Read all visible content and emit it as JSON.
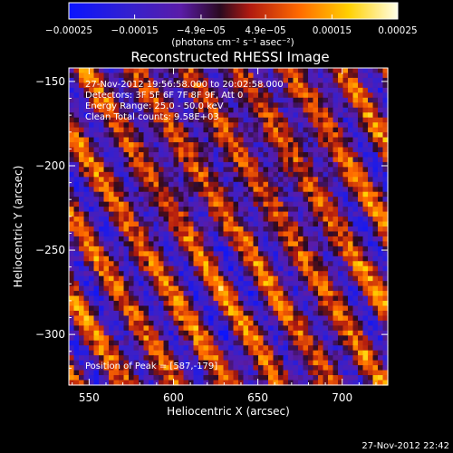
{
  "chart_data": {
    "type": "heatmap",
    "title": "Reconstructed RHESSI Image",
    "xlabel": "Heliocentric X (arcsec)",
    "ylabel": "Heliocentric Y (arcsec)",
    "xlim": [
      538,
      727
    ],
    "ylim": [
      -330,
      -142
    ],
    "x_ticks": [
      550,
      600,
      650,
      700
    ],
    "y_ticks": [
      -150,
      -200,
      -250,
      -300
    ],
    "x_tick_labels": [
      "550",
      "600",
      "650",
      "700"
    ],
    "y_tick_labels": [
      "−150",
      "−200",
      "−250",
      "−300"
    ],
    "colorbar": {
      "range": [
        -0.00025,
        0.00025
      ],
      "tick_values": [
        -0.00025,
        -0.00015,
        -4.9e-05,
        4.9e-05,
        0.00015,
        0.00025
      ],
      "tick_labels": [
        "−0.00025",
        "−0.00015",
        "−4.9e−05",
        "4.9e−05",
        "0.00015",
        "0.00025"
      ],
      "unit_label": "(photons cm⁻² s⁻¹ asec⁻²)",
      "colormap": "blue-purple-red-orange-yellow-white"
    },
    "annotations": {
      "time_range": "27-Nov-2012 19:56:58.000 to 20:02:58.000",
      "detectors": "Detectors: 3F 5F 6F 7F 8F 9F, Att 0",
      "energy": "Energy Range: 25.0 - 50.0 keV",
      "method": "Clean    Total counts: 9.58E+03",
      "peak": "Position of Peak = [587,-179]"
    },
    "peak_position": [
      587,
      -179
    ],
    "pattern": {
      "fringe_direction": "diagonal bands from upper-left to lower-right",
      "notes": "alternating bright (yellow/white) and dark (blue/purple) diagonal stripes"
    },
    "timestamp": "27-Nov-2012 22:42"
  },
  "colors": {
    "background": "#000000",
    "axis": "#ffffff",
    "colormap_stops": [
      "#0a14ff",
      "#3320d0",
      "#7a1f9a",
      "#b01a3a",
      "#e02a00",
      "#ff8c00",
      "#ffd400",
      "#ffffd8"
    ]
  }
}
